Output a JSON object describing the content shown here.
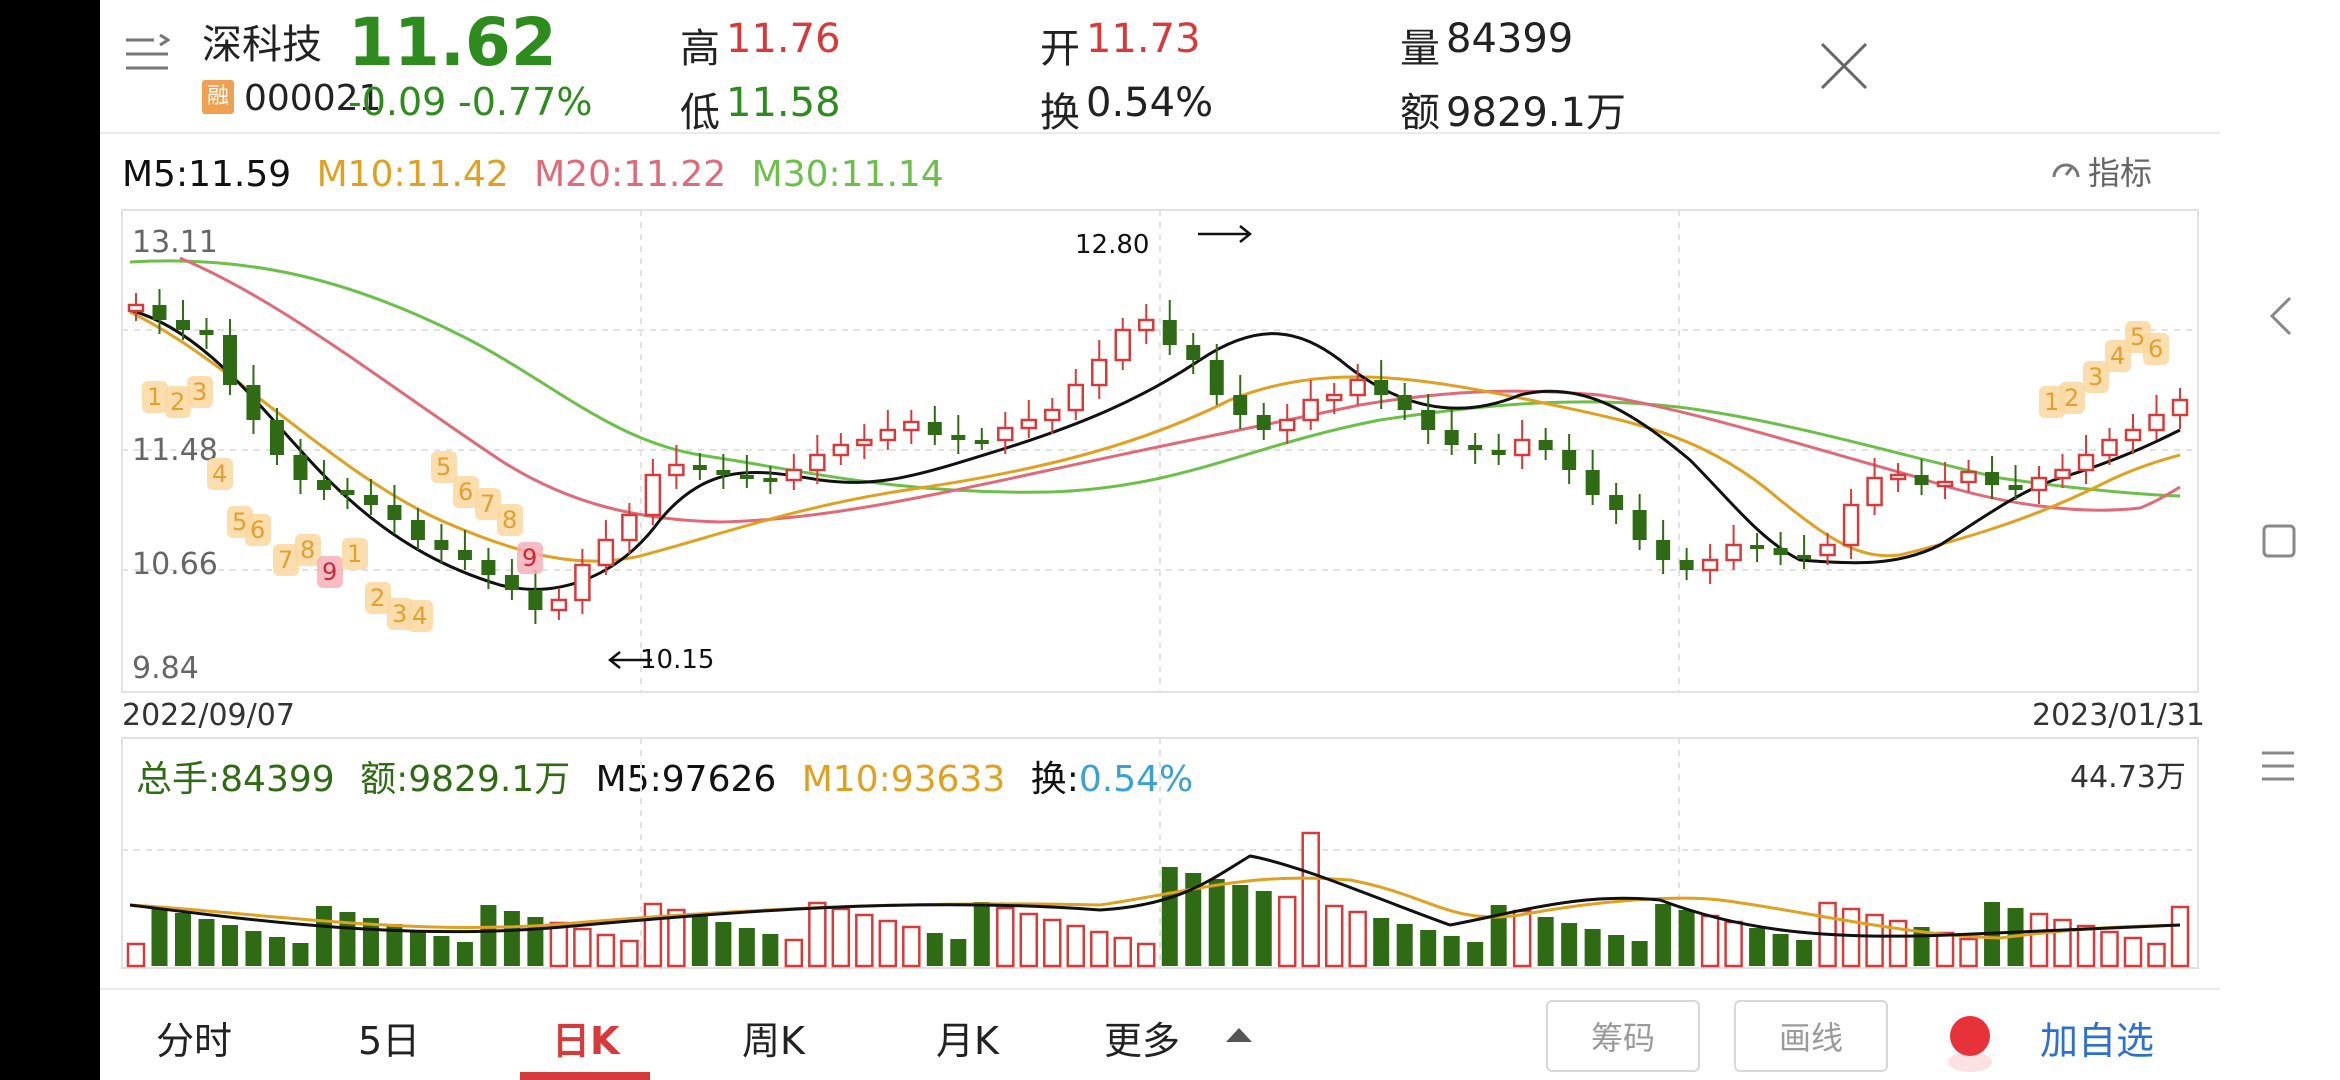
{
  "header": {
    "stock_name": "深科技",
    "badge": "融",
    "code": "000021",
    "price": "11.62",
    "change": "-0.09",
    "change_pct": "-0.77%",
    "high_label": "高",
    "high_value": "11.76",
    "low_label": "低",
    "low_value": "11.58",
    "open_label": "开",
    "open_value": "11.73",
    "turnover_label": "换",
    "turnover_value": "0.54%",
    "volume_label": "量",
    "volume_value": "84399",
    "amount_label": "额",
    "amount_value": "9829.1万"
  },
  "ma_legend": {
    "m5": "M5:11.59",
    "m10": "M10:11.42",
    "m20": "M20:11.22",
    "m30": "M30:11.14",
    "indicator_label": "指标"
  },
  "price_chart": {
    "y_labels": [
      "13.11",
      "11.48",
      "10.66",
      "9.84"
    ],
    "max_label": "12.80",
    "min_label": "10.15",
    "start_date": "2022/09/07",
    "end_date": "2023/01/31"
  },
  "volume_legend": {
    "total": "总手:84399",
    "amount": "额:9829.1万",
    "m5": "M5:97626",
    "m10": "M10:93633",
    "turnover_label": "换:",
    "turnover_value": "0.54%",
    "max": "44.73万"
  },
  "tabs": [
    "分时",
    "5日",
    "日K",
    "周K",
    "月K",
    "更多"
  ],
  "active_tab": "日K",
  "buttons": {
    "chips": "筹码",
    "draw": "画线",
    "add_watch": "加自选"
  },
  "colors": {
    "up": "#d63a3a",
    "down": "#2f6b14",
    "m5": "#111111",
    "m10": "#e0a020",
    "m20": "#e06a78",
    "m30": "#6cc04a"
  },
  "icons": [
    "menu-icon",
    "close-icon",
    "gauge-icon",
    "back-icon",
    "square-icon",
    "lines-icon",
    "caret-up-icon",
    "record-icon"
  ]
}
